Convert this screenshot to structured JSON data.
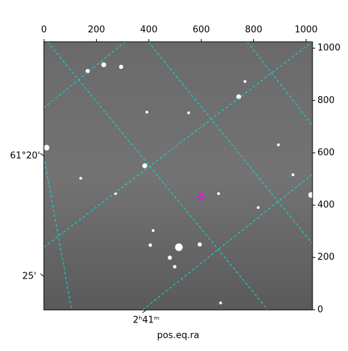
{
  "chart_data": {
    "type": "image",
    "xlabel": "pos.eq.ra",
    "xlim": [
      -0.5,
      1024.5
    ],
    "xticks": [
      0,
      200,
      400,
      600,
      800,
      1000
    ],
    "ylim": [
      -0.5,
      1024.5
    ],
    "yticks": [
      0,
      200,
      400,
      600,
      800,
      1000
    ],
    "wcs_left_labels": [
      "61°20'",
      "25'"
    ],
    "wcs_bottom_labels": [
      "2ʰ41ᵐ"
    ],
    "marker": {
      "x": 600,
      "y": 432,
      "color": "#ff00ff"
    },
    "grid_color": "#00e5e5"
  }
}
